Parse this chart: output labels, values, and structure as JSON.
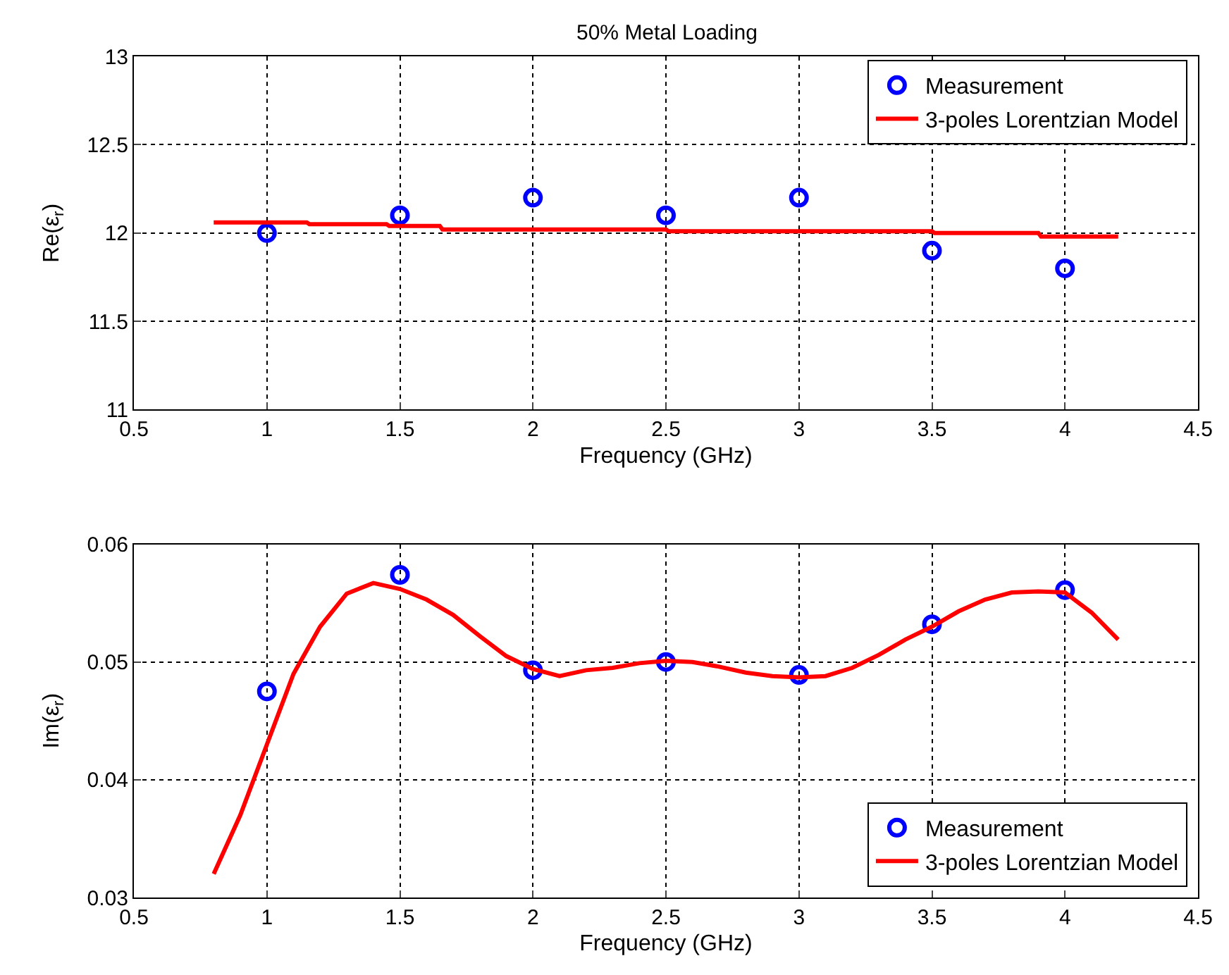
{
  "chart_data": [
    {
      "type": "scatter",
      "title": "50% Metal Loading",
      "xlabel": "Frequency (GHz)",
      "ylabel": "Re(ε$_{r}$)",
      "xlim": [
        0.5,
        4.5
      ],
      "xticks": [
        0.5,
        1,
        1.5,
        2,
        2.5,
        3,
        3.5,
        4,
        4.5
      ],
      "ylim": [
        11,
        13
      ],
      "yticks": [
        11,
        11.5,
        12,
        12.5,
        13
      ],
      "grid": true,
      "legend": "top right",
      "series": [
        {
          "name": "Measurement",
          "marker": "circle",
          "color": "#0000ff",
          "x": [
            1,
            1.5,
            2,
            2.5,
            3,
            3.5,
            4
          ],
          "values": [
            12.0,
            12.1,
            12.2,
            12.1,
            12.2,
            11.9,
            11.8
          ]
        },
        {
          "name": "3-poles Lorentzian Model",
          "type": "line",
          "line_style": "solid",
          "color": "#ff0000",
          "x": [
            0.8,
            1.15,
            1.16,
            1.45,
            1.46,
            1.65,
            1.66,
            2.5,
            2.51,
            3.5,
            3.51,
            3.9,
            3.91,
            4.2
          ],
          "values": [
            12.06,
            12.06,
            12.05,
            12.05,
            12.04,
            12.04,
            12.02,
            12.02,
            12.01,
            12.01,
            12.0,
            12.0,
            11.98,
            11.98
          ]
        }
      ]
    },
    {
      "type": "scatter",
      "xlabel": "Frequency (GHz)",
      "ylabel": "Im(ε$_{r}$)",
      "xlim": [
        0.5,
        4.5
      ],
      "xticks": [
        0.5,
        1,
        1.5,
        2,
        2.5,
        3,
        3.5,
        4,
        4.5
      ],
      "ylim": [
        0.03,
        0.06
      ],
      "yticks": [
        0.03,
        0.04,
        0.05,
        0.06
      ],
      "grid": true,
      "legend": "bottom right",
      "series": [
        {
          "name": "Measurement",
          "marker": "circle",
          "color": "#0000ff",
          "x": [
            1,
            1.5,
            2,
            2.5,
            3,
            3.5,
            4
          ],
          "values": [
            0.0475,
            0.0574,
            0.0493,
            0.05,
            0.0489,
            0.0532,
            0.0561
          ]
        },
        {
          "name": "3-poles Lorentzian Model",
          "type": "line",
          "line_style": "solid",
          "color": "#ff0000",
          "x": [
            0.8,
            0.9,
            1.0,
            1.1,
            1.2,
            1.3,
            1.4,
            1.5,
            1.6,
            1.7,
            1.8,
            1.9,
            2.0,
            2.1,
            2.2,
            2.3,
            2.4,
            2.5,
            2.6,
            2.7,
            2.8,
            2.9,
            3.0,
            3.1,
            3.2,
            3.3,
            3.4,
            3.5,
            3.6,
            3.7,
            3.8,
            3.9,
            4.0,
            4.1,
            4.2
          ],
          "values": [
            0.032,
            0.037,
            0.043,
            0.049,
            0.053,
            0.0558,
            0.0567,
            0.0562,
            0.0553,
            0.054,
            0.0522,
            0.0505,
            0.0494,
            0.0488,
            0.0493,
            0.0495,
            0.0499,
            0.0501,
            0.05,
            0.0496,
            0.0491,
            0.0488,
            0.0487,
            0.0488,
            0.0495,
            0.0506,
            0.0519,
            0.053,
            0.0543,
            0.0553,
            0.0559,
            0.056,
            0.0559,
            0.0542,
            0.0519
          ]
        }
      ]
    }
  ]
}
